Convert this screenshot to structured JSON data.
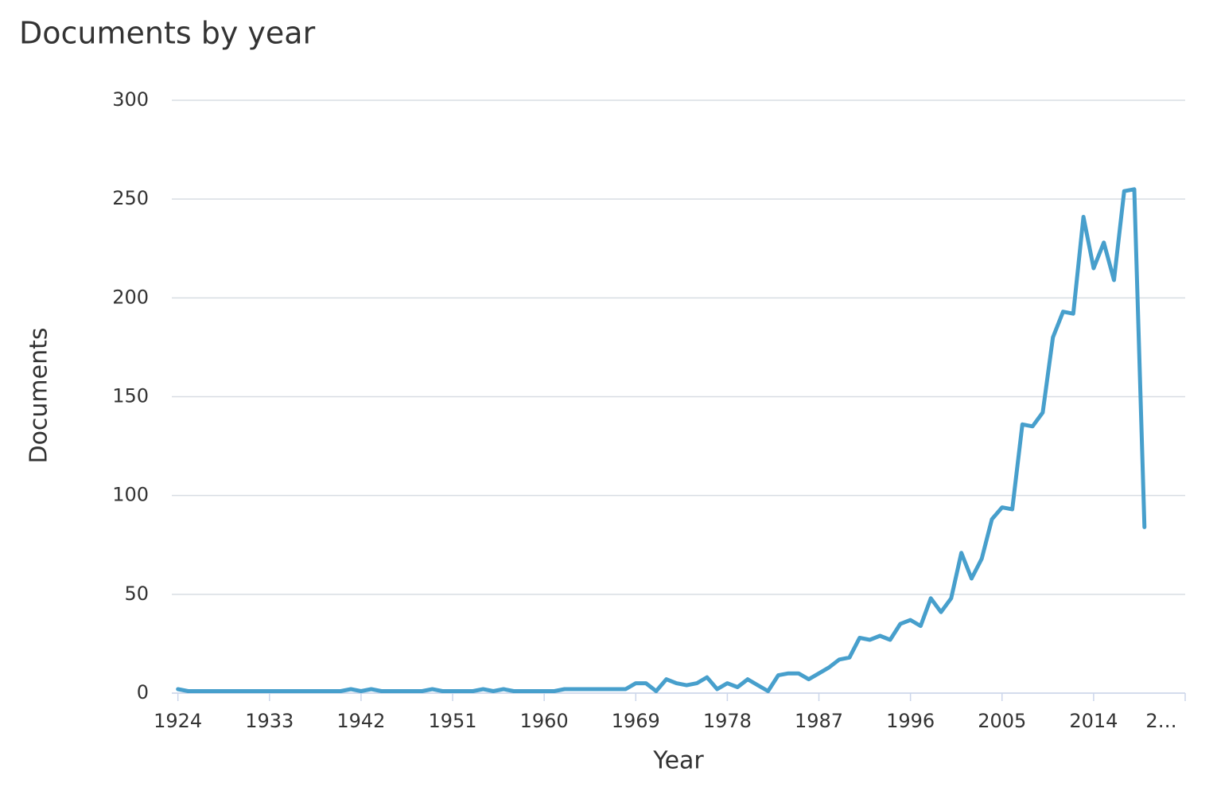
{
  "chart_data": {
    "type": "line",
    "title": "Documents by year",
    "x_label": "Year",
    "y_label": "Documents",
    "x": [
      1924,
      1925,
      1926,
      1927,
      1928,
      1929,
      1930,
      1931,
      1932,
      1933,
      1934,
      1935,
      1936,
      1937,
      1938,
      1939,
      1940,
      1941,
      1942,
      1943,
      1944,
      1945,
      1946,
      1947,
      1948,
      1949,
      1950,
      1951,
      1952,
      1953,
      1954,
      1955,
      1956,
      1957,
      1958,
      1959,
      1960,
      1961,
      1962,
      1963,
      1964,
      1965,
      1966,
      1967,
      1968,
      1969,
      1970,
      1971,
      1972,
      1973,
      1974,
      1975,
      1976,
      1977,
      1978,
      1979,
      1980,
      1981,
      1982,
      1983,
      1984,
      1985,
      1986,
      1987,
      1988,
      1989,
      1990,
      1991,
      1992,
      1993,
      1994,
      1995,
      1996,
      1997,
      1998,
      1999,
      2000,
      2001,
      2002,
      2003,
      2004,
      2005,
      2006,
      2007,
      2008,
      2009,
      2010,
      2011,
      2012,
      2013,
      2014,
      2015,
      2016,
      2017,
      2018,
      2019
    ],
    "series": [
      {
        "name": "Documents",
        "color": "#479fcc",
        "values": [
          2,
          1,
          1,
          1,
          1,
          1,
          1,
          1,
          1,
          1,
          1,
          1,
          1,
          1,
          1,
          1,
          1,
          2,
          1,
          2,
          1,
          1,
          1,
          1,
          1,
          2,
          1,
          1,
          1,
          1,
          2,
          1,
          2,
          1,
          1,
          1,
          1,
          1,
          2,
          2,
          2,
          2,
          2,
          2,
          2,
          5,
          5,
          1,
          7,
          5,
          4,
          5,
          8,
          2,
          5,
          3,
          7,
          4,
          1,
          9,
          10,
          10,
          7,
          10,
          13,
          17,
          18,
          28,
          27,
          29,
          27,
          35,
          37,
          34,
          48,
          41,
          48,
          71,
          58,
          68,
          88,
          94,
          93,
          136,
          135,
          142,
          180,
          193,
          192,
          241,
          215,
          228,
          209,
          254,
          255,
          84
        ]
      }
    ],
    "xlim": [
      1923.4,
      2023
    ],
    "xticks": [
      1924,
      1933,
      1942,
      1951,
      1960,
      1969,
      1978,
      1987,
      1996,
      2005,
      2014,
      {
        "value": 2023,
        "label": "2…"
      }
    ],
    "ylim": [
      0,
      300
    ],
    "yticks": [
      0,
      50,
      100,
      150,
      200,
      250,
      300
    ],
    "grid": true
  }
}
